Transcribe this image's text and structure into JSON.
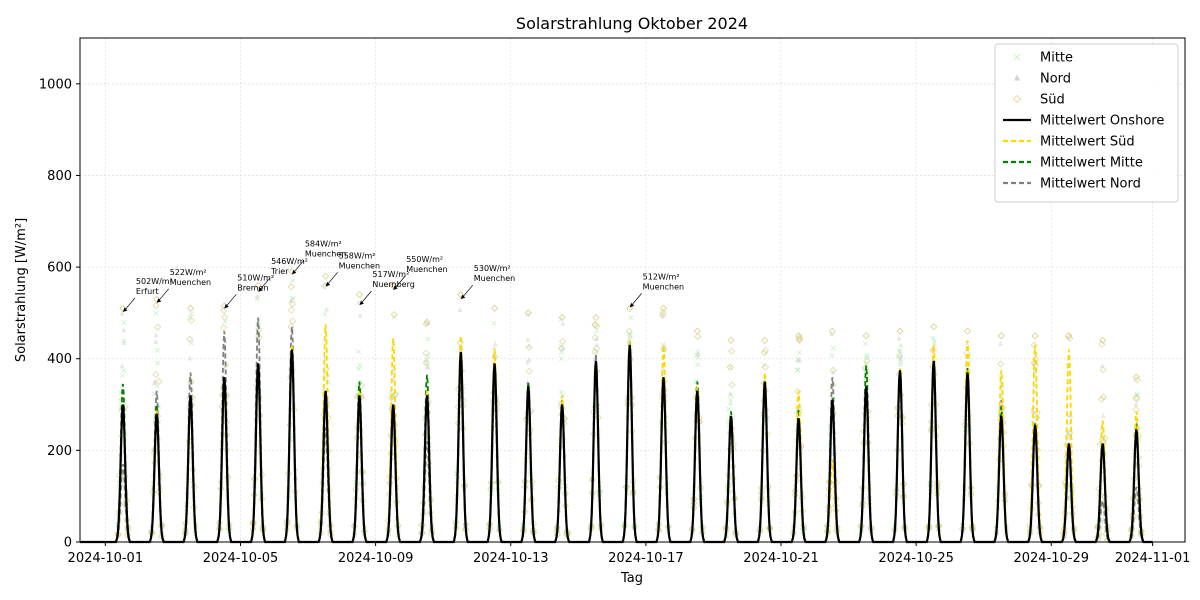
{
  "chart_data": {
    "type": "line",
    "title": "Solarstrahlung Oktober 2024",
    "xlabel": "Tag",
    "ylabel": "Solarstrahlung [W/m²]",
    "x_domain": [
      "2024-09-30T06:00",
      "2024-11-01T23:00"
    ],
    "ylim": [
      0,
      1100
    ],
    "x_ticks": [
      "2024-10-01",
      "2024-10-05",
      "2024-10-09",
      "2024-10-13",
      "2024-10-17",
      "2024-10-21",
      "2024-10-25",
      "2024-10-29",
      "2024-11-01"
    ],
    "y_ticks": [
      0,
      200,
      400,
      600,
      800,
      1000
    ],
    "grid": true,
    "legend_position": "top-right",
    "legend": [
      {
        "label": "Mitte",
        "kind": "marker",
        "marker": "x",
        "color": "#90ee90"
      },
      {
        "label": "Nord",
        "kind": "marker",
        "marker": "triangle",
        "color": "#d3d3d3"
      },
      {
        "label": "Süd",
        "kind": "marker",
        "marker": "diamond",
        "color": "#e8e0a0"
      },
      {
        "label": "Mittelwert Onshore",
        "kind": "line",
        "style": "solid",
        "color": "#000000"
      },
      {
        "label": "Mittelwert Süd",
        "kind": "line",
        "style": "dashed",
        "color": "#ffd700"
      },
      {
        "label": "Mittelwert Mitte",
        "kind": "line",
        "style": "dashed",
        "color": "#008000"
      },
      {
        "label": "Mittelwert Nord",
        "kind": "line",
        "style": "dashed",
        "color": "#808080"
      }
    ],
    "days": [
      "2024-10-01",
      "2024-10-02",
      "2024-10-03",
      "2024-10-04",
      "2024-10-05",
      "2024-10-06",
      "2024-10-07",
      "2024-10-08",
      "2024-10-09",
      "2024-10-10",
      "2024-10-11",
      "2024-10-12",
      "2024-10-13",
      "2024-10-14",
      "2024-10-15",
      "2024-10-16",
      "2024-10-17",
      "2024-10-18",
      "2024-10-19",
      "2024-10-20",
      "2024-10-21",
      "2024-10-22",
      "2024-10-23",
      "2024-10-24",
      "2024-10-25",
      "2024-10-26",
      "2024-10-27",
      "2024-10-28",
      "2024-10-29",
      "2024-10-30",
      "2024-10-31"
    ],
    "daily_peak_series": [
      {
        "name": "Mittelwert Onshore",
        "color": "#000000",
        "style": "solid",
        "values": [
          300,
          280,
          320,
          360,
          390,
          420,
          330,
          320,
          300,
          320,
          415,
          390,
          340,
          300,
          395,
          430,
          360,
          330,
          275,
          350,
          270,
          310,
          340,
          375,
          395,
          370,
          275,
          255,
          215,
          215,
          245
        ]
      },
      {
        "name": "Mittelwert Süd",
        "color": "#ffd700",
        "style": "dashed",
        "values": [
          280,
          290,
          300,
          330,
          370,
          430,
          475,
          330,
          445,
          330,
          450,
          420,
          330,
          320,
          380,
          440,
          430,
          340,
          275,
          370,
          330,
          180,
          320,
          380,
          430,
          440,
          375,
          430,
          420,
          265,
          285
        ]
      },
      {
        "name": "Mittelwert Mitte",
        "color": "#008000",
        "style": "dashed",
        "values": [
          345,
          300,
          310,
          350,
          380,
          420,
          320,
          350,
          300,
          365,
          410,
          390,
          350,
          310,
          390,
          440,
          350,
          350,
          285,
          345,
          290,
          315,
          385,
          375,
          395,
          380,
          295,
          260,
          215,
          210,
          260
        ]
      },
      {
        "name": "Mittelwert Nord",
        "color": "#808080",
        "style": "dashed",
        "values": [
          170,
          330,
          370,
          460,
          490,
          470,
          250,
          290,
          270,
          220,
          360,
          330,
          320,
          290,
          410,
          410,
          350,
          310,
          250,
          330,
          250,
          360,
          330,
          360,
          380,
          360,
          310,
          260,
          200,
          90,
          120
        ]
      }
    ],
    "scatter_envelope": [
      510,
      530,
      510,
      515,
      560,
      590,
      580,
      540,
      560,
      480,
      540,
      510,
      500,
      490,
      490,
      510,
      510,
      460,
      440,
      440,
      450,
      460,
      450,
      460,
      470,
      460,
      450,
      450,
      450,
      440,
      360
    ],
    "annotations": [
      {
        "date": "2024-10-01",
        "value": 502,
        "text1": "502W/m²",
        "text2": "Erfurt"
      },
      {
        "date": "2024-10-02",
        "value": 522,
        "text1": "522W/m²",
        "text2": "Muenchen"
      },
      {
        "date": "2024-10-04",
        "value": 510,
        "text1": "510W/m²",
        "text2": "Bremen"
      },
      {
        "date": "2024-10-05",
        "value": 546,
        "text1": "546W/m²",
        "text2": "Trier"
      },
      {
        "date": "2024-10-06",
        "value": 584,
        "text1": "584W/m²",
        "text2": "Muenchen"
      },
      {
        "date": "2024-10-07",
        "value": 558,
        "text1": "558W/m²",
        "text2": "Muenchen"
      },
      {
        "date": "2024-10-08",
        "value": 517,
        "text1": "517W/m²",
        "text2": "Nuernberg"
      },
      {
        "date": "2024-10-09",
        "value": 550,
        "text1": "550W/m²",
        "text2": "Muenchen"
      },
      {
        "date": "2024-10-11",
        "value": 530,
        "text1": "530W/m²",
        "text2": "Muenchen"
      },
      {
        "date": "2024-10-16",
        "value": 512,
        "text1": "512W/m²",
        "text2": "Muenchen"
      }
    ]
  }
}
